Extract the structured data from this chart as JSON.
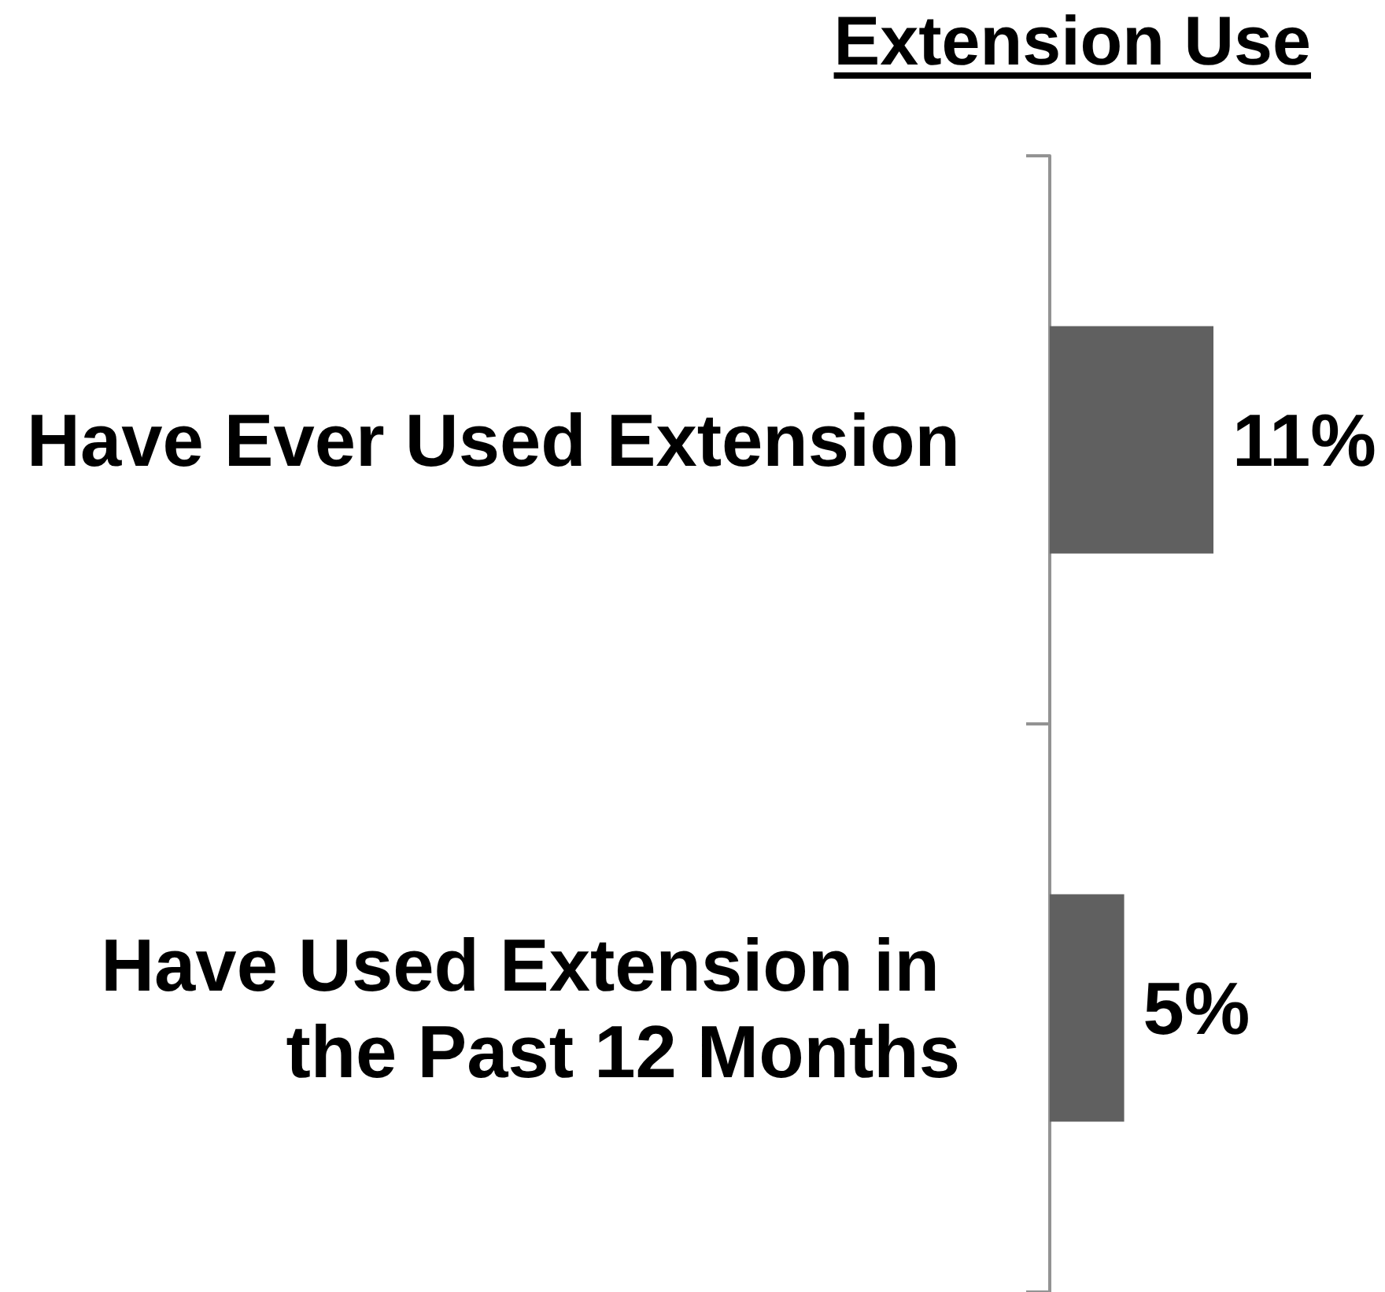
{
  "chart_data": {
    "type": "bar",
    "orientation": "horizontal",
    "title": "Extension Use",
    "categories": [
      "Have Ever Used Extension",
      "Have Used Extension in the Past 12 Months"
    ],
    "values": [
      11,
      5
    ],
    "value_labels": [
      "11%",
      "5%"
    ],
    "color": "#606060"
  }
}
